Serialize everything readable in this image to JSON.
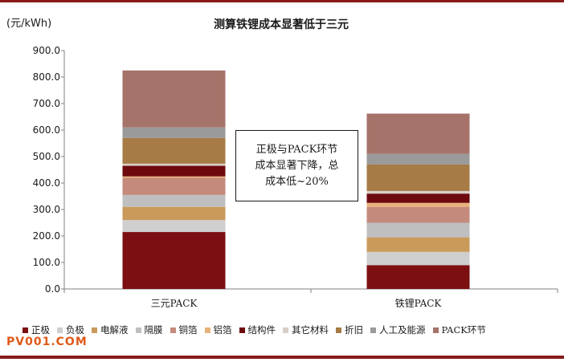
{
  "chart_data": {
    "type": "bar",
    "stacked": true,
    "title": "测算铁锂成本显著低于三元",
    "ylabel": "(元/kWh)",
    "xlabel": "",
    "ylim": [
      0,
      900
    ],
    "yticks": [
      "0.0",
      "100.0",
      "200.0",
      "300.0",
      "400.0",
      "500.0",
      "600.0",
      "700.0",
      "800.0",
      "900.0"
    ],
    "categories": [
      "三元PACK",
      "铁锂PACK"
    ],
    "legend_position": "bottom",
    "grid": false,
    "series": [
      {
        "name": "正极",
        "color": "#7b0f12",
        "values": [
          215,
          90
        ]
      },
      {
        "name": "负极",
        "color": "#cfcfcf",
        "values": [
          45,
          50
        ]
      },
      {
        "name": "电解液",
        "color": "#c99a5a",
        "values": [
          50,
          55
        ]
      },
      {
        "name": "隔膜",
        "color": "#bfbfbf",
        "values": [
          45,
          55
        ]
      },
      {
        "name": "铜箔",
        "color": "#c48a7c",
        "values": [
          65,
          60
        ]
      },
      {
        "name": "铝箔",
        "color": "#e8b27a",
        "values": [
          5,
          15
        ]
      },
      {
        "name": "结构件",
        "color": "#6e0a0e",
        "values": [
          40,
          35
        ]
      },
      {
        "name": "其它材料",
        "color": "#d7cfc6",
        "values": [
          8,
          10
        ]
      },
      {
        "name": "折旧",
        "color": "#a67b45",
        "values": [
          97,
          100
        ]
      },
      {
        "name": "人工及能源",
        "color": "#9a9a9a",
        "values": [
          40,
          40
        ]
      },
      {
        "name": "PACK环节",
        "color": "#a6736a",
        "values": [
          215,
          152
        ]
      }
    ],
    "annotation": "正极与PACK环节\n成本显著下降，总\n成本低~20%"
  },
  "watermark": "PV001.COM",
  "colors": {
    "top_rule": "#8a1a1a",
    "bottom_rule": "#8a1a1a",
    "axis": "#808080"
  }
}
